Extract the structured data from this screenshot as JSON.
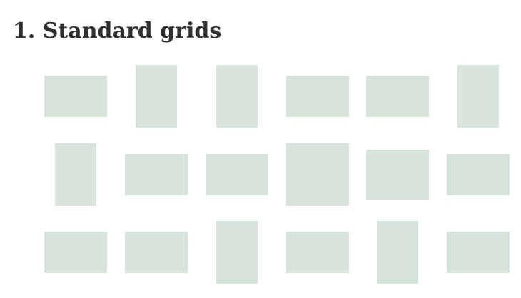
{
  "title": "1. Standard grids",
  "colors": {
    "tile": "#d6e4da",
    "text": "#2f2f2f"
  },
  "rows": [
    [
      "landscape",
      "portrait",
      "portrait",
      "landscape",
      "landscape",
      "portrait"
    ],
    [
      "portrait",
      "landscape",
      "landscape",
      "square",
      "landscape",
      "landscape"
    ],
    [
      "landscape",
      "landscape",
      "portrait",
      "landscape",
      "portrait",
      "landscape"
    ]
  ]
}
